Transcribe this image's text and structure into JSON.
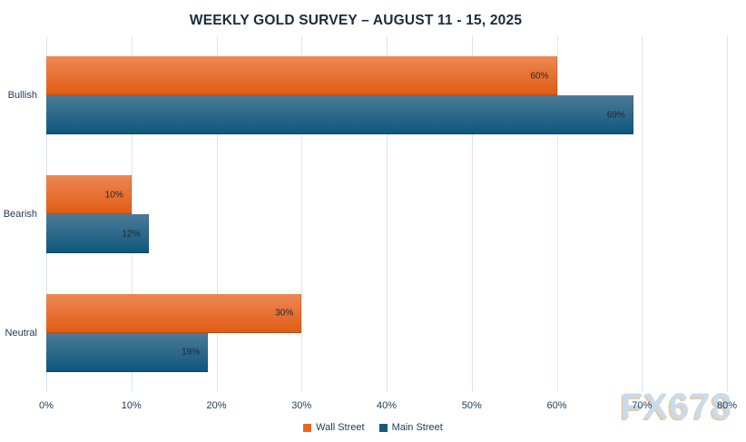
{
  "title": "WEEKLY GOLD SURVEY – AUGUST 11  - 15, 2025",
  "watermark": "FX678",
  "chart_data": {
    "type": "bar",
    "orientation": "horizontal",
    "title": "WEEKLY GOLD SURVEY – AUGUST 11  - 15, 2025",
    "categories": [
      "Bullish",
      "Bearish",
      "Neutral"
    ],
    "series": [
      {
        "name": "Wall Street",
        "values": [
          60,
          10,
          30
        ],
        "value_labels": [
          "60%",
          "10%",
          "30%"
        ],
        "legend_color": "#E8671E",
        "gradient_top": "#ED8754",
        "gradient_bottom": "#E05C12"
      },
      {
        "name": "Main Street",
        "values": [
          69,
          12,
          19
        ],
        "value_labels": [
          "69%",
          "12%",
          "19%"
        ],
        "legend_color": "#15597E",
        "gradient_top": "#4C7B98",
        "gradient_bottom": "#0D567C"
      }
    ],
    "xlabel": "",
    "ylabel": "",
    "xlim": [
      0,
      80
    ],
    "x_ticks": [
      "0%",
      "10%",
      "20%",
      "30%",
      "40%",
      "50%",
      "60%",
      "70%",
      "80%"
    ],
    "grid": true,
    "legend_position": "bottom"
  },
  "colors": {
    "title_text": "#1B2B3D",
    "axis_text": "#1C3A57",
    "gridline": "#D7E6F4",
    "bar_value_text": "#222831",
    "watermark_fill": "#C9DBEB",
    "watermark_shadow": "#E2CCAE",
    "background": "#FFFFFF"
  }
}
